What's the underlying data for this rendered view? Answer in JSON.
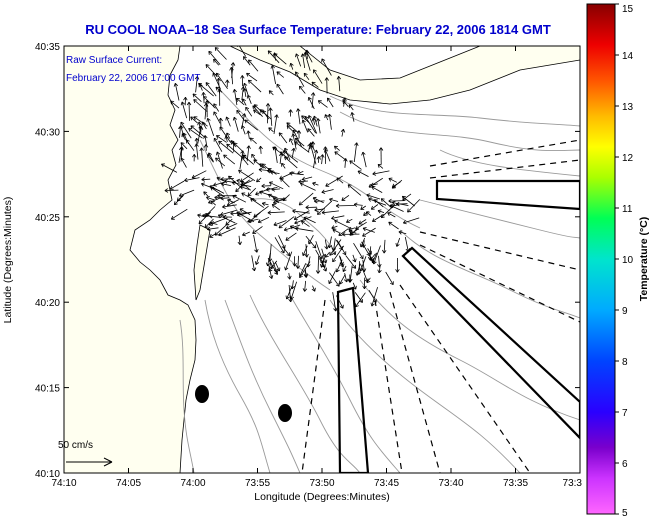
{
  "title": "RU COOL  NOAA–18  Sea Surface Temperature:  February 22, 2006 1814 GMT",
  "inset": {
    "line1": "Raw Surface Current:",
    "line2": "February 22, 2006 17:00 GMT"
  },
  "scale_label": "50 cm/s",
  "x_axis": {
    "label": "Longitude (Degrees:Minutes)",
    "ticks": [
      "74:10",
      "74:05",
      "74:00",
      "73:55",
      "73:50",
      "73:45",
      "73:40",
      "73:35",
      "73:3"
    ]
  },
  "y_axis": {
    "label": "Latitude (Degrees:Minutes)",
    "ticks": [
      "40:35",
      "40:30",
      "40:25",
      "40:20",
      "40:15",
      "40:10"
    ]
  },
  "colorbar": {
    "label": "Temperature (°C)",
    "ticks": [
      "15",
      "14",
      "13",
      "12",
      "11",
      "10",
      "9",
      "8",
      "7",
      "6",
      "5"
    ],
    "min": 5,
    "max": 15
  },
  "colors": {
    "title": "#0000cc",
    "land": "#fffff0",
    "contour": "#9a9a9a"
  },
  "icons": {
    "buoy": "black-ellipse-marker",
    "scale": "right-arrow"
  }
}
